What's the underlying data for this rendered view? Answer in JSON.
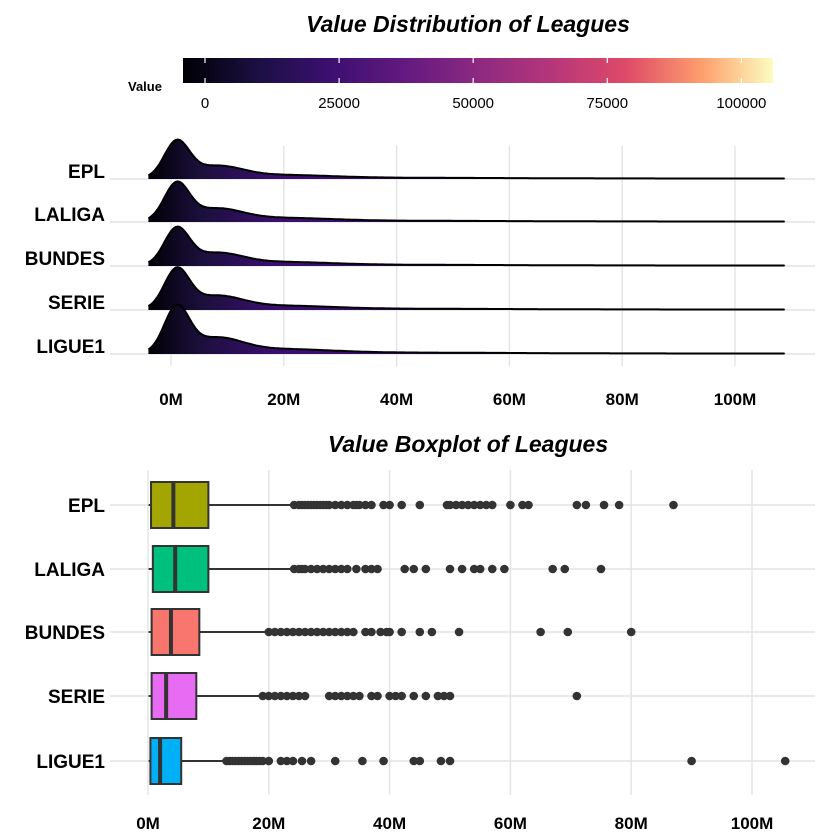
{
  "chart_data": [
    {
      "type": "ridgeline",
      "title": "Value Distribution of Leagues",
      "colorbar": {
        "label": "Value",
        "colormap": "magma",
        "range": [
          0,
          110000
        ],
        "ticks": [
          0,
          25000,
          50000,
          75000,
          100000
        ],
        "tick_labels": [
          "0",
          "25000",
          "50000",
          "75000",
          "100000"
        ]
      },
      "xlim": [
        -4,
        110
      ],
      "x_ticks": [
        0,
        20,
        40,
        60,
        80,
        100
      ],
      "x_tick_labels": [
        "0M",
        "20M",
        "40M",
        "60M",
        "80M",
        "100M"
      ],
      "grid": true,
      "categories": [
        "EPL",
        "LALIGA",
        "BUNDES",
        "SERIE",
        "LIGUE1"
      ],
      "series": [
        {
          "name": "EPL",
          "peak_x": 1.0,
          "peak_height": 35,
          "data_range": [
            -4,
            109
          ]
        },
        {
          "name": "LALIGA",
          "peak_x": 1.2,
          "peak_height": 36,
          "data_range": [
            -4,
            109
          ]
        },
        {
          "name": "BUNDES",
          "peak_x": 1.0,
          "peak_height": 35,
          "data_range": [
            -4,
            109
          ]
        },
        {
          "name": "SERIE",
          "peak_x": 1.0,
          "peak_height": 38,
          "data_range": [
            -4,
            109
          ]
        },
        {
          "name": "LIGUE1",
          "peak_x": 1.3,
          "peak_height": 44,
          "data_range": [
            -4,
            109
          ]
        }
      ]
    },
    {
      "type": "boxplot",
      "title": "Value Boxplot of Leagues",
      "xlim": [
        0,
        107
      ],
      "x_ticks": [
        0,
        20,
        40,
        60,
        80,
        100
      ],
      "x_tick_labels": [
        "0M",
        "20M",
        "40M",
        "60M",
        "80M",
        "100M"
      ],
      "grid": true,
      "categories": [
        "EPL",
        "LALIGA",
        "BUNDES",
        "SERIE",
        "LIGUE1"
      ],
      "series": [
        {
          "name": "EPL",
          "color": "#a3a500",
          "min": 0.1,
          "q1": 0.5,
          "median": 4.2,
          "q3": 10.0,
          "whisker_high": 24.0,
          "outliers": [
            24.2,
            25,
            25.5,
            26,
            26.5,
            27,
            27.5,
            28,
            28.5,
            29,
            29.5,
            30,
            31,
            32,
            33,
            34,
            34.5,
            35,
            36,
            37,
            39,
            40,
            42,
            45,
            49.5,
            50,
            51,
            52,
            53,
            54,
            55,
            56,
            57,
            60,
            62,
            63,
            71,
            72.5,
            75.5,
            78,
            87
          ]
        },
        {
          "name": "LALIGA",
          "color": "#00c07e",
          "min": 0.1,
          "q1": 0.8,
          "median": 4.5,
          "q3": 10.0,
          "whisker_high": 24.0,
          "outliers": [
            24.2,
            25,
            25.5,
            26,
            27,
            28,
            29,
            30,
            31,
            32,
            33,
            34.5,
            36,
            37,
            38,
            42.5,
            44,
            46,
            50,
            52,
            54,
            55,
            57,
            59,
            67,
            69,
            75
          ]
        },
        {
          "name": "BUNDES",
          "color": "#f8766d",
          "min": 0.1,
          "q1": 0.6,
          "median": 3.8,
          "q3": 8.5,
          "whisker_high": 19.5,
          "outliers": [
            20,
            21,
            22,
            23,
            24,
            25,
            26,
            27,
            28,
            29,
            30,
            31,
            32,
            33,
            34,
            36,
            37,
            38.5,
            39.5,
            40,
            42,
            45,
            47,
            51.5,
            65,
            69.5,
            80
          ]
        },
        {
          "name": "SERIE",
          "color": "#e76bf3",
          "min": 0.1,
          "q1": 0.6,
          "median": 3.0,
          "q3": 8.0,
          "whisker_high": 18.5,
          "outliers": [
            19,
            20,
            21,
            22,
            23,
            24,
            25,
            26,
            30,
            31,
            32,
            33,
            34,
            35,
            37,
            38,
            40,
            41,
            42,
            44,
            46,
            48,
            49,
            50,
            71
          ]
        },
        {
          "name": "LIGUE1",
          "color": "#00b0f6",
          "min": 0.1,
          "q1": 0.4,
          "median": 2.0,
          "q3": 5.5,
          "whisker_high": 12.5,
          "outliers": [
            13,
            13.5,
            14,
            14.5,
            15,
            15.5,
            16,
            16.5,
            17,
            17.5,
            18,
            18.5,
            19,
            20,
            22,
            23,
            24,
            25.5,
            27,
            31,
            35.5,
            39,
            44,
            45,
            48.5,
            50,
            90,
            105.5
          ]
        }
      ]
    }
  ]
}
